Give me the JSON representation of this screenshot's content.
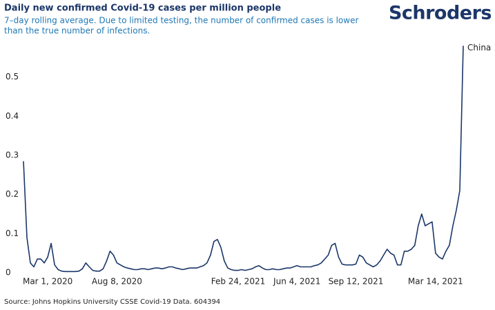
{
  "chart_data": {
    "type": "line",
    "title": "Daily new confirmed Covid-19 cases per million people",
    "subtitle": [
      "7–day rolling average. Due to limited testing, the number of confirmed cases is lower",
      "than the true number of infections."
    ],
    "brand": "Schroders",
    "source": "Source: Johns Hopkins University CSSE Covid-19 Data. 604394",
    "categories": [
      null,
      null,
      null,
      null,
      null,
      null,
      null,
      "Mar 1, 2020",
      null,
      null,
      null,
      null,
      null,
      null,
      null,
      null,
      null,
      null,
      null,
      null,
      null,
      null,
      null,
      null,
      null,
      null,
      null,
      "Aug 8, 2020",
      null,
      null,
      null,
      null,
      null,
      null,
      null,
      null,
      null,
      null,
      null,
      null,
      null,
      null,
      null,
      null,
      null,
      null,
      null,
      null,
      null,
      null,
      null,
      null,
      null,
      null,
      null,
      null,
      null,
      null,
      null,
      null,
      null,
      null,
      "Feb 24, 2021",
      null,
      null,
      null,
      null,
      null,
      null,
      null,
      null,
      null,
      null,
      null,
      null,
      null,
      null,
      null,
      null,
      "Jun 4, 2021",
      null,
      null,
      null,
      null,
      null,
      null,
      null,
      null,
      null,
      null,
      null,
      null,
      null,
      null,
      null,
      null,
      "Sep 12, 2021",
      null,
      null,
      null,
      null,
      null,
      null,
      null,
      null,
      null,
      null,
      null,
      null,
      null,
      null,
      null,
      null,
      null,
      null,
      null,
      null,
      null,
      null,
      "Mar 14, 2021",
      null,
      null,
      null,
      null,
      null,
      null,
      null,
      null
    ],
    "series": [
      {
        "name": "China",
        "color": "#1b3668",
        "values": [
          0.285,
          0.09,
          0.025,
          0.015,
          0.035,
          0.035,
          0.025,
          0.04,
          0.075,
          0.02,
          0.008,
          0.004,
          0.003,
          0.003,
          0.003,
          0.003,
          0.004,
          0.01,
          0.025,
          0.015,
          0.006,
          0.004,
          0.004,
          0.01,
          0.03,
          0.055,
          0.045,
          0.025,
          0.02,
          0.015,
          0.012,
          0.01,
          0.008,
          0.008,
          0.01,
          0.01,
          0.008,
          0.01,
          0.012,
          0.012,
          0.01,
          0.012,
          0.015,
          0.015,
          0.012,
          0.01,
          0.008,
          0.01,
          0.012,
          0.012,
          0.012,
          0.015,
          0.018,
          0.025,
          0.045,
          0.08,
          0.085,
          0.065,
          0.03,
          0.012,
          0.008,
          0.006,
          0.006,
          0.008,
          0.006,
          0.008,
          0.01,
          0.015,
          0.018,
          0.012,
          0.008,
          0.008,
          0.01,
          0.008,
          0.008,
          0.01,
          0.012,
          0.012,
          0.015,
          0.018,
          0.015,
          0.015,
          0.015,
          0.015,
          0.018,
          0.02,
          0.025,
          0.035,
          0.045,
          0.07,
          0.075,
          0.04,
          0.022,
          0.02,
          0.02,
          0.02,
          0.022,
          0.045,
          0.04,
          0.025,
          0.02,
          0.015,
          0.02,
          0.03,
          0.045,
          0.06,
          0.05,
          0.045,
          0.02,
          0.02,
          0.055,
          0.055,
          0.06,
          0.07,
          0.12,
          0.15,
          0.12,
          0.125,
          0.13,
          0.05,
          0.04,
          0.035,
          0.055,
          0.07,
          0.12,
          0.16,
          0.21,
          0.58
        ]
      }
    ],
    "ylim": [
      0,
      0.6
    ],
    "yticks": [
      0,
      0.1,
      0.2,
      0.3,
      0.4,
      0.5
    ],
    "grid": false
  }
}
